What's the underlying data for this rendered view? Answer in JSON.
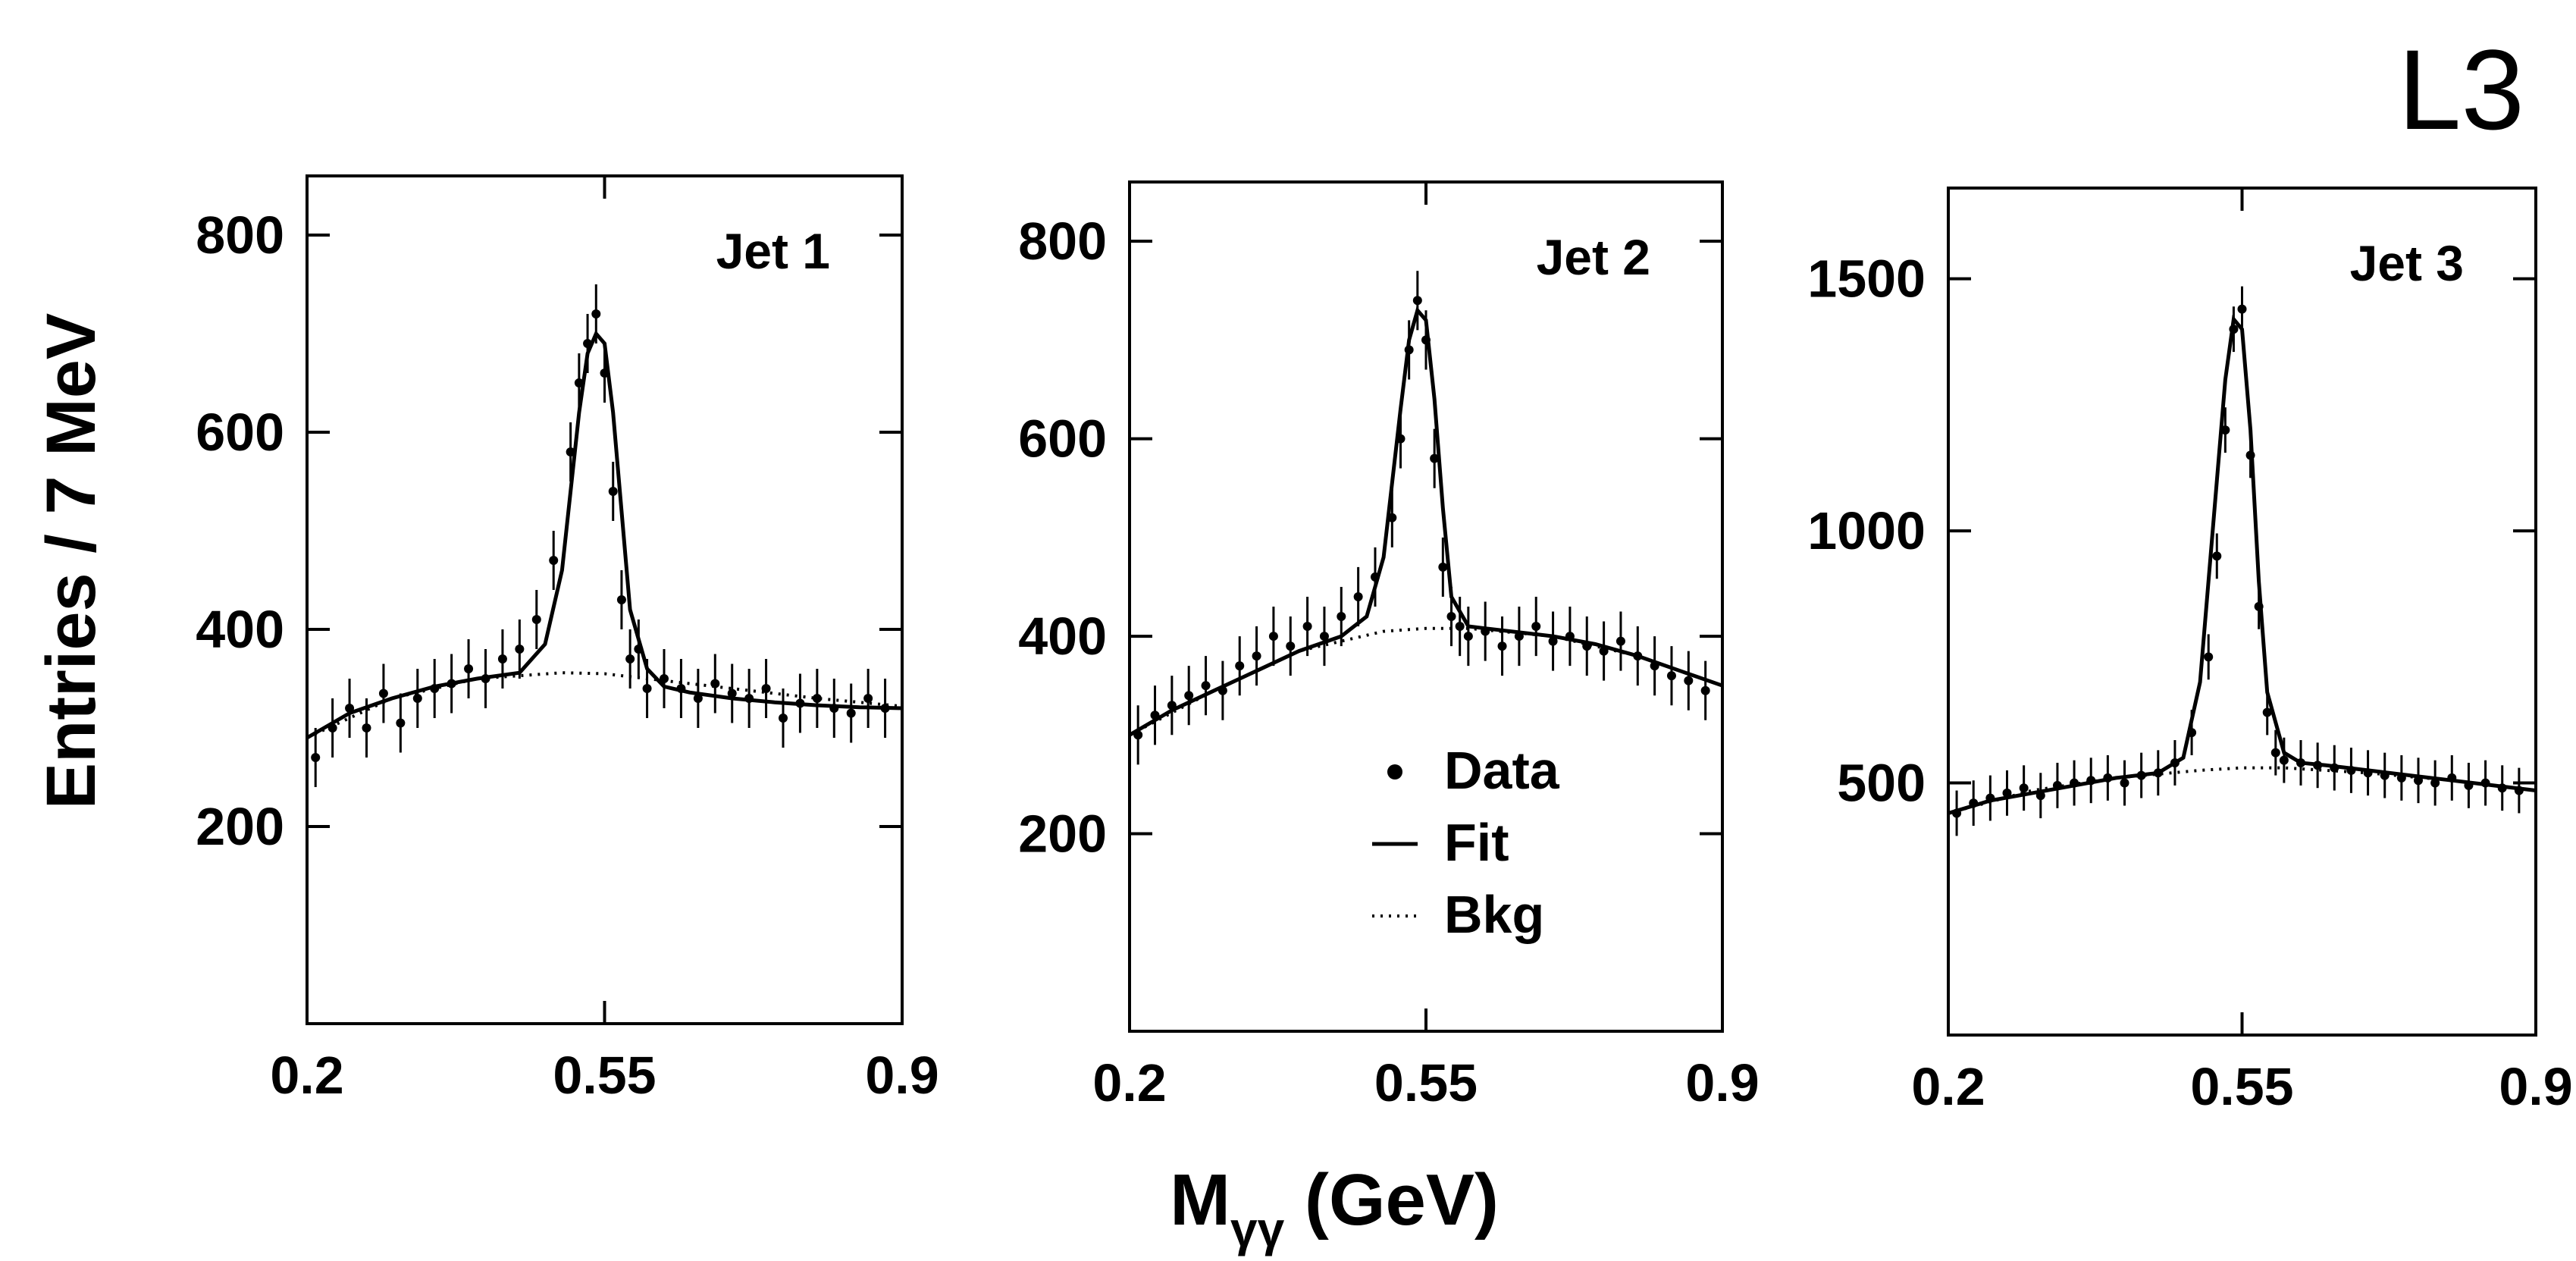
{
  "experiment_label": "L3",
  "ylabel": "Entries / 7 MeV",
  "xlabel_main": "M",
  "xlabel_sub": "γγ",
  "xlabel_unit": " (GeV)",
  "legend": [
    {
      "label": "Data",
      "style": "point"
    },
    {
      "label": "Fit",
      "style": "solid"
    },
    {
      "label": "Bkg",
      "style": "dotted"
    }
  ],
  "colors": {
    "ink": "#000000",
    "background": "#ffffff"
  },
  "chart_data": [
    {
      "type": "scatter",
      "title": "Jet 1",
      "xlim": [
        0.2,
        0.9
      ],
      "ylim": [
        0,
        860
      ],
      "xticks": [
        0.2,
        0.55,
        0.9
      ],
      "xtick_labels": [
        "0.2",
        "0.55",
        "0.9"
      ],
      "yticks": [
        200,
        400,
        600,
        800
      ],
      "ytick_labels": [
        "200",
        "400",
        "600",
        "800"
      ],
      "series": [
        {
          "name": "Data",
          "style": "points-with-errors",
          "x": [
            0.21,
            0.23,
            0.25,
            0.27,
            0.29,
            0.31,
            0.33,
            0.35,
            0.37,
            0.39,
            0.41,
            0.43,
            0.45,
            0.47,
            0.49,
            0.51,
            0.52,
            0.53,
            0.54,
            0.55,
            0.56,
            0.57,
            0.58,
            0.59,
            0.6,
            0.62,
            0.64,
            0.66,
            0.68,
            0.7,
            0.72,
            0.74,
            0.76,
            0.78,
            0.8,
            0.82,
            0.84,
            0.86,
            0.88
          ],
          "y": [
            270,
            300,
            320,
            300,
            335,
            305,
            330,
            340,
            345,
            360,
            350,
            370,
            380,
            410,
            470,
            580,
            650,
            690,
            720,
            660,
            540,
            430,
            370,
            380,
            340,
            350,
            340,
            330,
            345,
            335,
            330,
            340,
            310,
            325,
            330,
            320,
            315,
            330,
            320
          ],
          "err": 30
        },
        {
          "name": "Fit",
          "style": "solid",
          "x": [
            0.2,
            0.25,
            0.3,
            0.35,
            0.4,
            0.45,
            0.48,
            0.5,
            0.52,
            0.53,
            0.54,
            0.55,
            0.56,
            0.57,
            0.58,
            0.6,
            0.62,
            0.65,
            0.7,
            0.75,
            0.8,
            0.85,
            0.9
          ],
          "y": [
            290,
            315,
            330,
            342,
            350,
            356,
            385,
            460,
            620,
            680,
            700,
            690,
            620,
            520,
            420,
            360,
            342,
            336,
            330,
            326,
            323,
            321,
            320
          ]
        },
        {
          "name": "Bkg",
          "style": "dotted",
          "x": [
            0.2,
            0.3,
            0.4,
            0.5,
            0.55,
            0.6,
            0.7,
            0.8,
            0.9
          ],
          "y": [
            290,
            330,
            350,
            356,
            355,
            350,
            340,
            330,
            322
          ]
        }
      ]
    },
    {
      "type": "scatter",
      "title": "Jet 2",
      "xlim": [
        0.2,
        0.9
      ],
      "ylim": [
        0,
        860
      ],
      "xticks": [
        0.2,
        0.55,
        0.9
      ],
      "xtick_labels": [
        "0.2",
        "0.55",
        "0.9"
      ],
      "yticks": [
        200,
        400,
        600,
        800
      ],
      "ytick_labels": [
        "200",
        "400",
        "600",
        "800"
      ],
      "series": [
        {
          "name": "Data",
          "style": "points-with-errors",
          "x": [
            0.21,
            0.23,
            0.25,
            0.27,
            0.29,
            0.31,
            0.33,
            0.35,
            0.37,
            0.39,
            0.41,
            0.43,
            0.45,
            0.47,
            0.49,
            0.51,
            0.52,
            0.53,
            0.54,
            0.55,
            0.56,
            0.57,
            0.58,
            0.59,
            0.6,
            0.62,
            0.64,
            0.66,
            0.68,
            0.7,
            0.72,
            0.74,
            0.76,
            0.78,
            0.8,
            0.82,
            0.84,
            0.86,
            0.88
          ],
          "y": [
            300,
            320,
            330,
            340,
            350,
            345,
            370,
            380,
            400,
            390,
            410,
            400,
            420,
            440,
            460,
            520,
            600,
            690,
            740,
            700,
            580,
            470,
            420,
            410,
            400,
            405,
            390,
            400,
            410,
            395,
            400,
            390,
            385,
            395,
            380,
            370,
            360,
            355,
            345
          ],
          "err": 30
        },
        {
          "name": "Fit",
          "style": "solid",
          "x": [
            0.2,
            0.25,
            0.3,
            0.35,
            0.4,
            0.45,
            0.48,
            0.5,
            0.52,
            0.53,
            0.54,
            0.55,
            0.56,
            0.57,
            0.58,
            0.6,
            0.62,
            0.65,
            0.7,
            0.75,
            0.8,
            0.85,
            0.9
          ],
          "y": [
            300,
            325,
            345,
            365,
            385,
            400,
            420,
            480,
            630,
            700,
            730,
            720,
            640,
            530,
            440,
            410,
            408,
            405,
            400,
            392,
            380,
            365,
            350
          ]
        },
        {
          "name": "Bkg",
          "style": "dotted",
          "x": [
            0.2,
            0.3,
            0.4,
            0.5,
            0.55,
            0.6,
            0.7,
            0.8,
            0.9
          ],
          "y": [
            300,
            345,
            385,
            405,
            408,
            408,
            400,
            380,
            350
          ]
        }
      ]
    },
    {
      "type": "scatter",
      "title": "Jet 3",
      "xlim": [
        0.2,
        0.9
      ],
      "ylim": [
        0,
        1680
      ],
      "xticks": [
        0.2,
        0.55,
        0.9
      ],
      "xtick_labels": [
        "0.2",
        "0.55",
        "0.9"
      ],
      "yticks": [
        500,
        1000,
        1500
      ],
      "ytick_labels": [
        "500",
        "1000",
        "1500"
      ],
      "series": [
        {
          "name": "Data",
          "style": "points-with-errors",
          "x": [
            0.21,
            0.23,
            0.25,
            0.27,
            0.29,
            0.31,
            0.33,
            0.35,
            0.37,
            0.39,
            0.41,
            0.43,
            0.45,
            0.47,
            0.49,
            0.51,
            0.52,
            0.53,
            0.54,
            0.55,
            0.56,
            0.57,
            0.58,
            0.59,
            0.6,
            0.62,
            0.64,
            0.66,
            0.68,
            0.7,
            0.72,
            0.74,
            0.76,
            0.78,
            0.8,
            0.82,
            0.84,
            0.86,
            0.88
          ],
          "y": [
            440,
            460,
            470,
            480,
            490,
            475,
            495,
            500,
            505,
            510,
            500,
            515,
            520,
            540,
            600,
            750,
            950,
            1200,
            1400,
            1440,
            1150,
            850,
            640,
            560,
            545,
            540,
            535,
            530,
            525,
            520,
            515,
            510,
            505,
            500,
            510,
            495,
            500,
            490,
            485
          ],
          "err": 45
        },
        {
          "name": "Fit",
          "style": "solid",
          "x": [
            0.2,
            0.25,
            0.3,
            0.35,
            0.4,
            0.45,
            0.48,
            0.5,
            0.52,
            0.53,
            0.54,
            0.55,
            0.56,
            0.57,
            0.58,
            0.6,
            0.62,
            0.65,
            0.7,
            0.75,
            0.8,
            0.85,
            0.9
          ],
          "y": [
            440,
            465,
            480,
            495,
            510,
            520,
            550,
            700,
            1100,
            1300,
            1420,
            1400,
            1200,
            900,
            680,
            560,
            540,
            535,
            525,
            515,
            505,
            495,
            485
          ]
        },
        {
          "name": "Bkg",
          "style": "dotted",
          "x": [
            0.2,
            0.3,
            0.4,
            0.5,
            0.55,
            0.6,
            0.7,
            0.8,
            0.9
          ],
          "y": [
            440,
            485,
            510,
            525,
            530,
            530,
            520,
            505,
            485
          ]
        }
      ]
    }
  ]
}
